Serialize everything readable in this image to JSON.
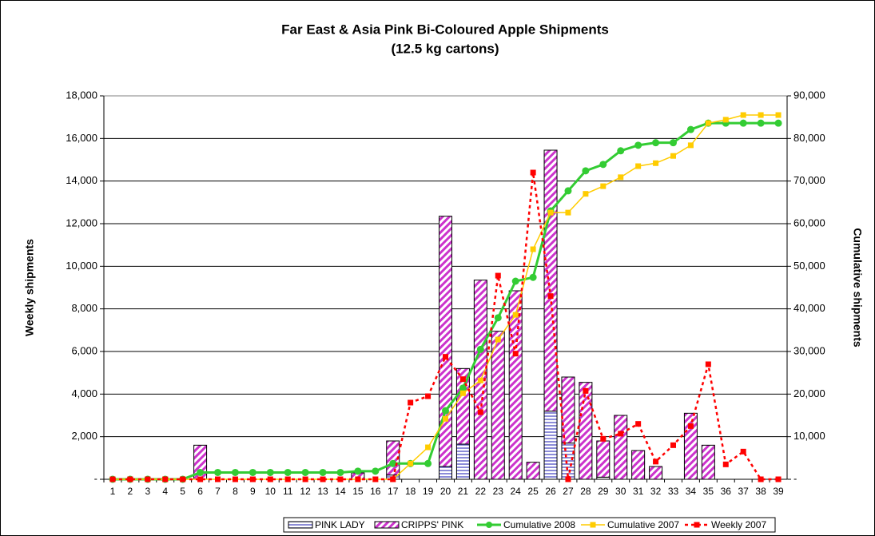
{
  "chart_data": {
    "type": "bar-line",
    "title": "Far East & Asia Pink Bi-Coloured Apple Shipments",
    "subtitle": "(12.5 kg cartons)",
    "y_label": "Weekly shipments",
    "y2_label": "Cumulative shipments",
    "categories": [
      "1",
      "2",
      "3",
      "4",
      "5",
      "6",
      "7",
      "8",
      "9",
      "10",
      "11",
      "12",
      "13",
      "14",
      "15",
      "16",
      "17",
      "18",
      "19",
      "20",
      "21",
      "22",
      "23",
      "24",
      "25",
      "26",
      "27",
      "28",
      "29",
      "30",
      "31",
      "32",
      "33",
      "34",
      "35",
      "36",
      "37",
      "38",
      "39"
    ],
    "ylim": [
      0,
      18000
    ],
    "yticks": [
      {
        "value": 0,
        "label": "-"
      },
      {
        "value": 2000,
        "label": "2,000"
      },
      {
        "value": 4000,
        "label": "4,000"
      },
      {
        "value": 6000,
        "label": "6,000"
      },
      {
        "value": 8000,
        "label": "8,000"
      },
      {
        "value": 10000,
        "label": "10,000"
      },
      {
        "value": 12000,
        "label": "12,000"
      },
      {
        "value": 14000,
        "label": "14,000"
      },
      {
        "value": 16000,
        "label": "16,000"
      },
      {
        "value": 18000,
        "label": "18,000"
      }
    ],
    "y2lim": [
      0,
      90000
    ],
    "y2ticks": [
      {
        "value": 0,
        "label": "-"
      },
      {
        "value": 10000,
        "label": "10,000"
      },
      {
        "value": 20000,
        "label": "20,000"
      },
      {
        "value": 30000,
        "label": "30,000"
      },
      {
        "value": 40000,
        "label": "40,000"
      },
      {
        "value": 50000,
        "label": "50,000"
      },
      {
        "value": 60000,
        "label": "60,000"
      },
      {
        "value": 70000,
        "label": "70,000"
      },
      {
        "value": 80000,
        "label": "80,000"
      },
      {
        "value": 90000,
        "label": "90,000"
      }
    ],
    "grid": true,
    "legend": "bottom",
    "series": [
      {
        "name": "PINK LADY",
        "type": "bar",
        "color": "#6666cc",
        "pattern": "horizontal",
        "values": [
          0,
          0,
          0,
          0,
          0,
          0,
          0,
          0,
          0,
          0,
          0,
          0,
          0,
          0,
          0,
          0,
          200,
          0,
          0,
          600,
          1650,
          0,
          0,
          0,
          0,
          3200,
          1700,
          0,
          100,
          0,
          0,
          0,
          0,
          0,
          0,
          0,
          0,
          0,
          0
        ]
      },
      {
        "name": "CRIPPS' PINK",
        "type": "bar",
        "color": "#cc33cc",
        "pattern": "diagonal",
        "values": [
          0,
          0,
          0,
          0,
          0,
          1600,
          0,
          0,
          0,
          0,
          0,
          0,
          0,
          0,
          300,
          0,
          1600,
          0,
          0,
          11750,
          3550,
          9350,
          6950,
          8850,
          800,
          12250,
          3100,
          4550,
          1700,
          3000,
          1350,
          600,
          0,
          3100,
          1600,
          0,
          0,
          0,
          0
        ]
      },
      {
        "name": "Cumulative 2008",
        "type": "line",
        "axis": "y2",
        "color": "#33cc33",
        "marker": "circle",
        "line_style": "solid",
        "width": 3,
        "values": [
          0,
          0,
          0,
          0,
          0,
          1600,
          1600,
          1600,
          1600,
          1600,
          1600,
          1600,
          1600,
          1600,
          1900,
          1900,
          3700,
          3700,
          3700,
          16100,
          21400,
          30500,
          37900,
          46500,
          47400,
          63000,
          67700,
          72400,
          73900,
          77100,
          78400,
          79000,
          79000,
          82100,
          83600,
          83600,
          83600,
          83600,
          83600
        ]
      },
      {
        "name": "Cumulative 2007",
        "type": "line",
        "axis": "y2",
        "color": "#ffcc00",
        "marker": "square",
        "line_style": "solid",
        "width": 1.5,
        "values": [
          0,
          0,
          0,
          0,
          0,
          0,
          0,
          0,
          0,
          0,
          0,
          0,
          0,
          0,
          0,
          0,
          0,
          3700,
          7500,
          14200,
          20200,
          23200,
          32800,
          38600,
          54000,
          62600,
          62600,
          67000,
          68800,
          70900,
          73500,
          74200,
          75900,
          78400,
          83600,
          84400,
          85500,
          85500,
          85500
        ]
      },
      {
        "name": "Weekly 2007",
        "type": "line",
        "color": "#ff0000",
        "marker": "square",
        "line_style": "dashed",
        "width": 2.5,
        "values": [
          0,
          0,
          0,
          0,
          0,
          0,
          0,
          0,
          0,
          0,
          0,
          0,
          0,
          0,
          0,
          0,
          0,
          3600,
          3900,
          5750,
          4700,
          3150,
          9560,
          5900,
          14400,
          8600,
          0,
          4150,
          1900,
          2140,
          2600,
          830,
          1600,
          2500,
          5400,
          700,
          1300,
          0,
          0
        ]
      }
    ]
  }
}
